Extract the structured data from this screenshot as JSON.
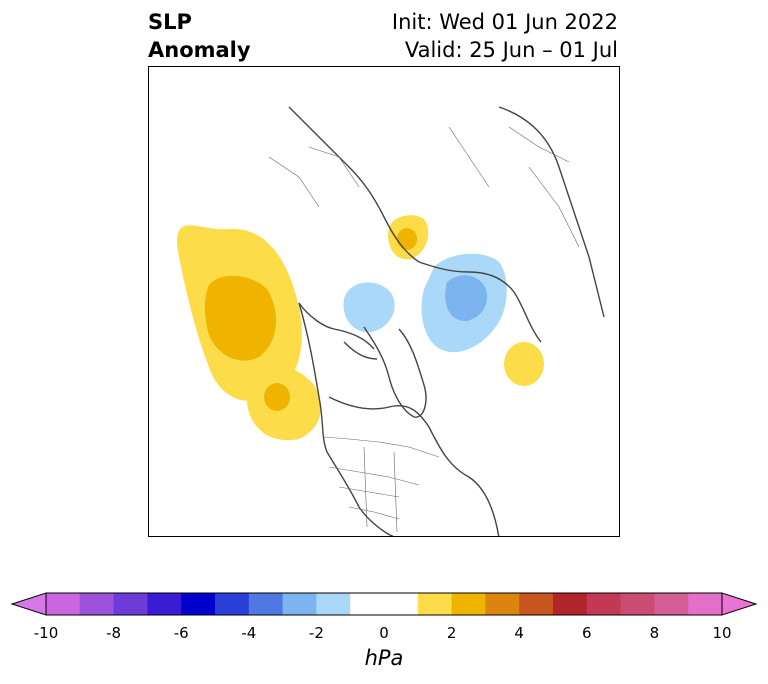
{
  "title": {
    "left_line1": "SLP",
    "left_line2": "Anomaly",
    "right_line1": "Init: Wed 01 Jun 2022",
    "right_line2": "Valid: 25 Jun – 01 Jul"
  },
  "map": {
    "projection": "north-polar-stereographic",
    "anomaly_regions": [
      {
        "region": "gulf-of-alaska-pacific",
        "value_hpa": 2,
        "core_value_hpa": 4
      },
      {
        "region": "pacific-northwest-coast",
        "value_hpa": 2,
        "core_value_hpa": 4
      },
      {
        "region": "scandinavia",
        "value_hpa": 2,
        "core_value_hpa": 4
      },
      {
        "region": "siberia-kara-sea",
        "value_hpa": -2,
        "core_value_hpa": -4
      },
      {
        "region": "beaufort-sea",
        "value_hpa": -2
      },
      {
        "region": "east-siberia-south",
        "value_hpa": 2
      }
    ]
  },
  "colorbar": {
    "unit": "hPa",
    "ticks": [
      "-10",
      "-8",
      "-6",
      "-4",
      "-2",
      "0",
      "2",
      "4",
      "6",
      "8",
      "10"
    ],
    "under_color": "#d679e6",
    "over_color": "#ea74d4",
    "colors": [
      "#cc66e0",
      "#9d52dc",
      "#6c3bd8",
      "#3a1cd4",
      "#0000cc",
      "#2a3fd8",
      "#4f78e2",
      "#7cb4f0",
      "#aad8f8",
      "#ffffff",
      "#ffffff",
      "#fcdc48",
      "#f0b400",
      "#dc8410",
      "#c6551e",
      "#b0262a",
      "#c33852",
      "#cb4c73",
      "#d45e96",
      "#e470ca"
    ]
  }
}
